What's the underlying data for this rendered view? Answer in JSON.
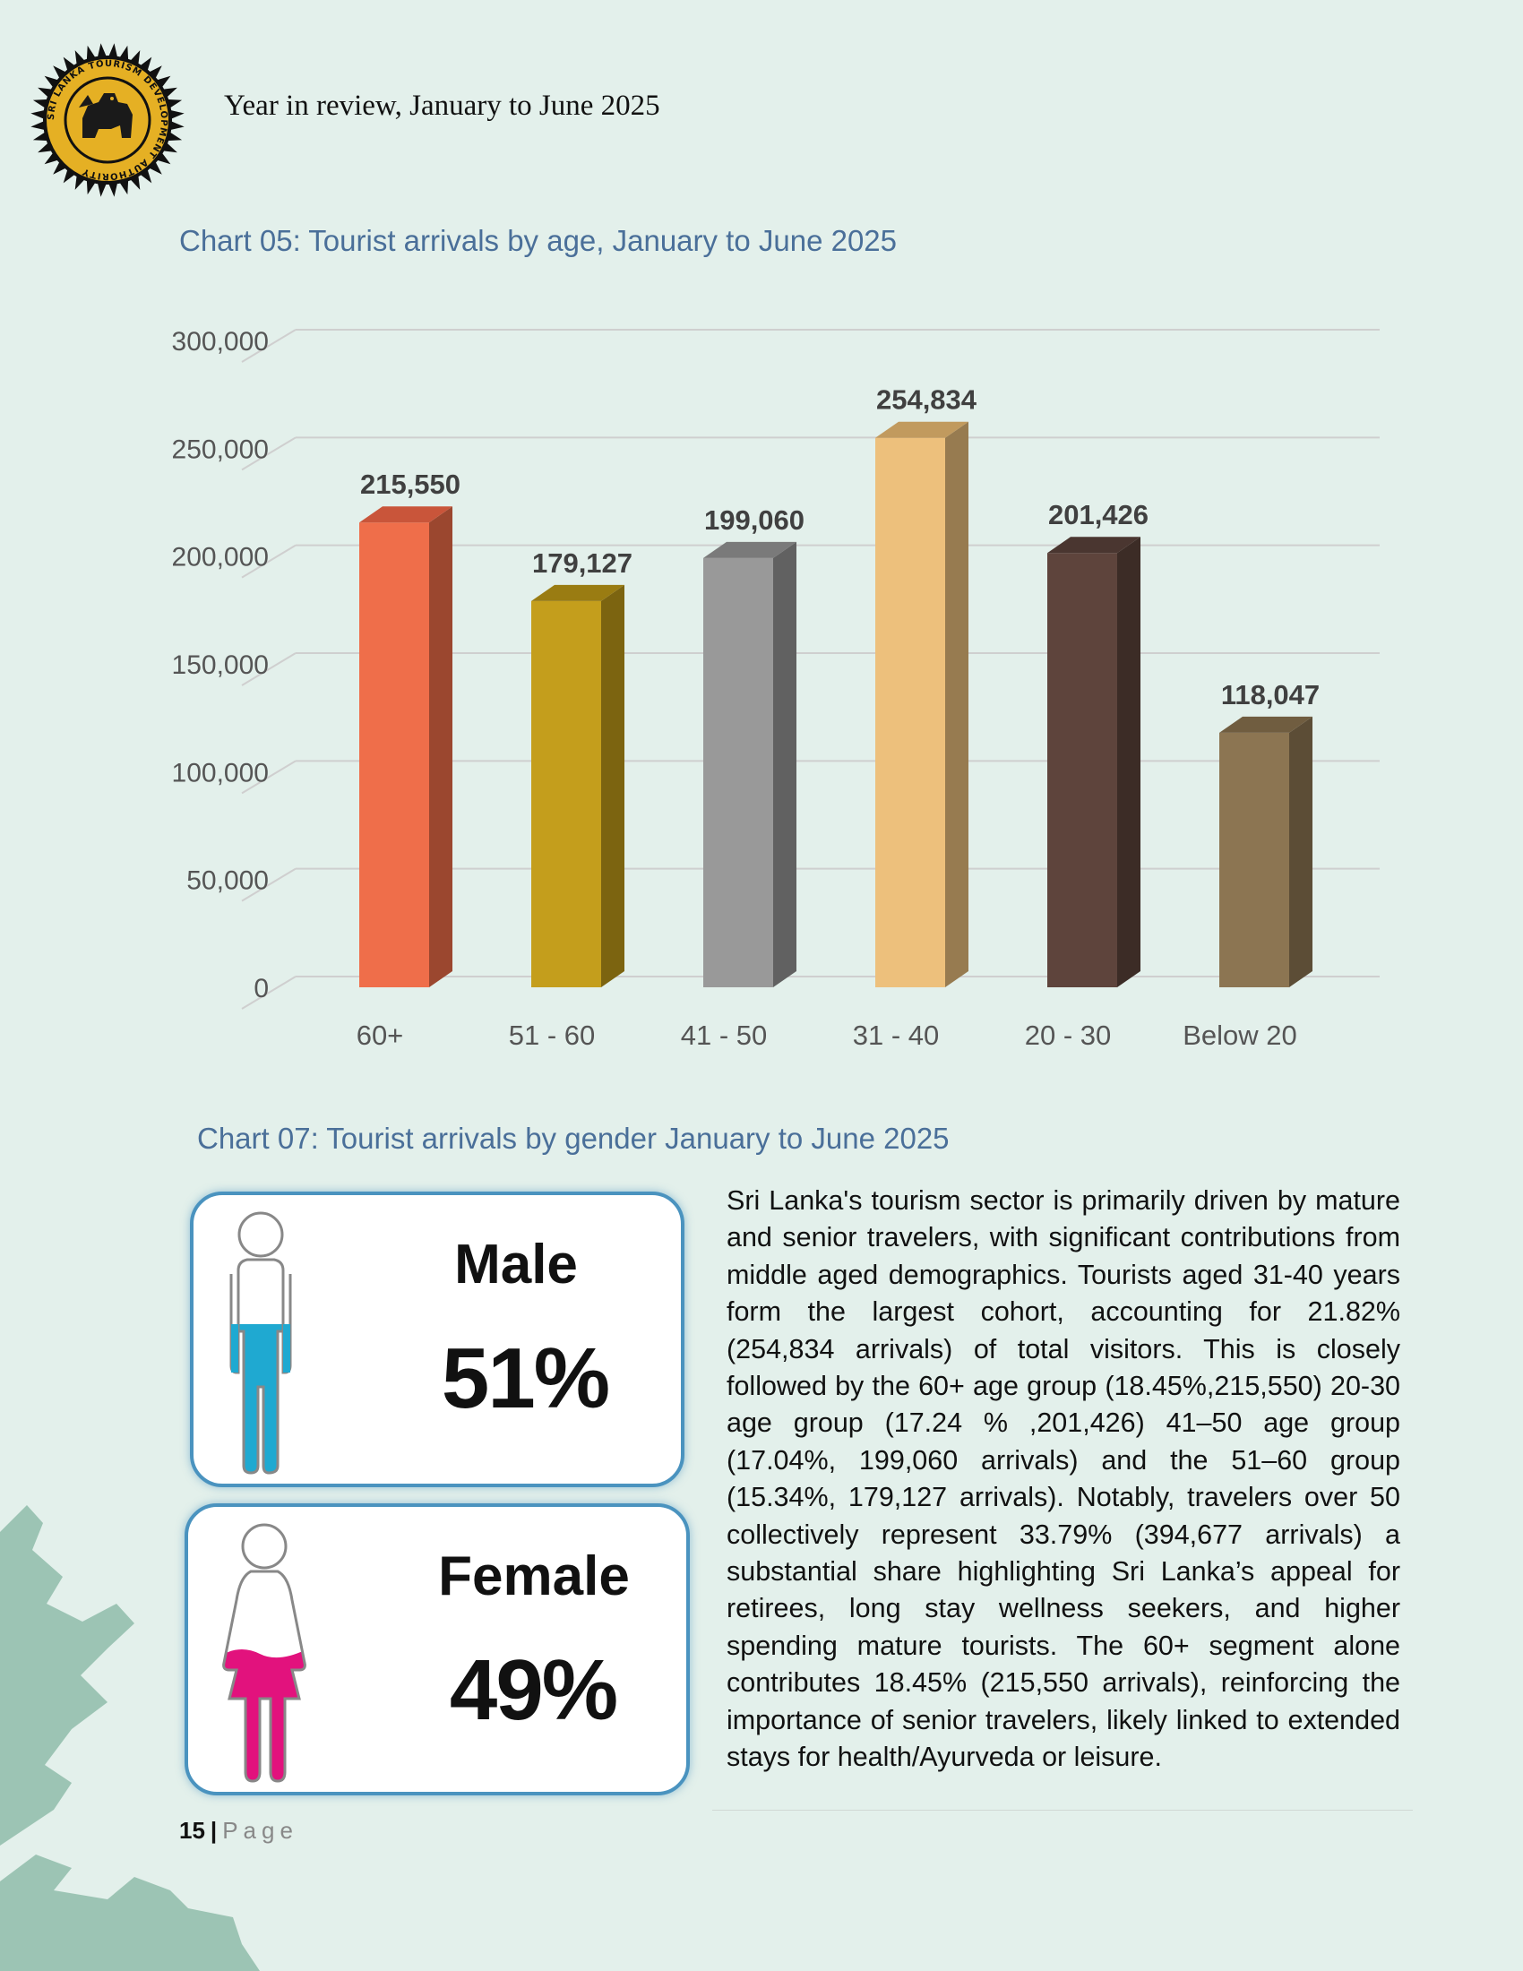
{
  "header": {
    "title": "Year in review, January to June 2025",
    "logo_text": "SRI LANKA TOURISM DEVELOPMENT AUTHORITY"
  },
  "chart_05": {
    "title": "Chart 05: Tourist arrivals by age, January to June 2025"
  },
  "chart_data": {
    "type": "bar",
    "title": "Chart 05: Tourist arrivals by age, January to June 2025",
    "categories": [
      "60+",
      "51 - 60",
      "41 - 50",
      "31 - 40",
      "20 - 30",
      "Below 20"
    ],
    "values": [
      215550,
      179127,
      199060,
      254834,
      201426,
      118047
    ],
    "value_labels": [
      "215,550",
      "179,127",
      "199,060",
      "254,834",
      "201,426",
      "118,047"
    ],
    "yticks": [
      "0",
      "50,000",
      "100,000",
      "150,000",
      "200,000",
      "250,000",
      "300,000"
    ],
    "ylim": [
      0,
      300000
    ],
    "xlabel": "",
    "ylabel": "",
    "grid": true,
    "legend": "none",
    "colors": [
      {
        "front": "#ef6e4a",
        "side": "#9b472f",
        "top": "#c9553a"
      },
      {
        "front": "#c49e1c",
        "side": "#7c6410",
        "top": "#9a7c12"
      },
      {
        "front": "#999999",
        "side": "#616161",
        "top": "#7a7a7a"
      },
      {
        "front": "#edc07c",
        "side": "#977b50",
        "top": "#c19a5e"
      },
      {
        "front": "#5e443c",
        "side": "#3c2c26",
        "top": "#4a3630"
      },
      {
        "front": "#8c7552",
        "side": "#5c4d36",
        "top": "#705d40"
      }
    ]
  },
  "chart_07": {
    "title": "Chart 07: Tourist arrivals by gender January to June 2025",
    "male": {
      "label": "Male",
      "percent": "51%",
      "color": "#1fa9d1"
    },
    "female": {
      "label": "Female",
      "percent": "49%",
      "color": "#e2127d"
    }
  },
  "body_text": "Sri Lanka's tourism sector is primarily driven by mature and senior travelers, with significant contributions from middle aged demographics. Tourists aged 31-40 years form the largest cohort, accounting for 21.82% (254,834 arrivals) of total visitors. This is closely followed by the 60+ age group (18.45%,215,550) 20-30 age group (17.24 % ,201,426) 41–50 age group (17.04%, 199,060 arrivals) and the 51–60 group (15.34%, 179,127 arrivals). Notably, travelers over 50 collectively represent 33.79% (394,677 arrivals) a substantial share highlighting Sri Lanka’s appeal for retirees, long stay wellness seekers, and higher spending mature tourists. The 60+ segment alone contributes 18.45% (215,550 arrivals), reinforcing the importance of senior travelers, likely linked to extended stays for health/Ayurveda or leisure.",
  "footer": {
    "page_number": "15",
    "separator": "|",
    "page_word": "Page"
  }
}
